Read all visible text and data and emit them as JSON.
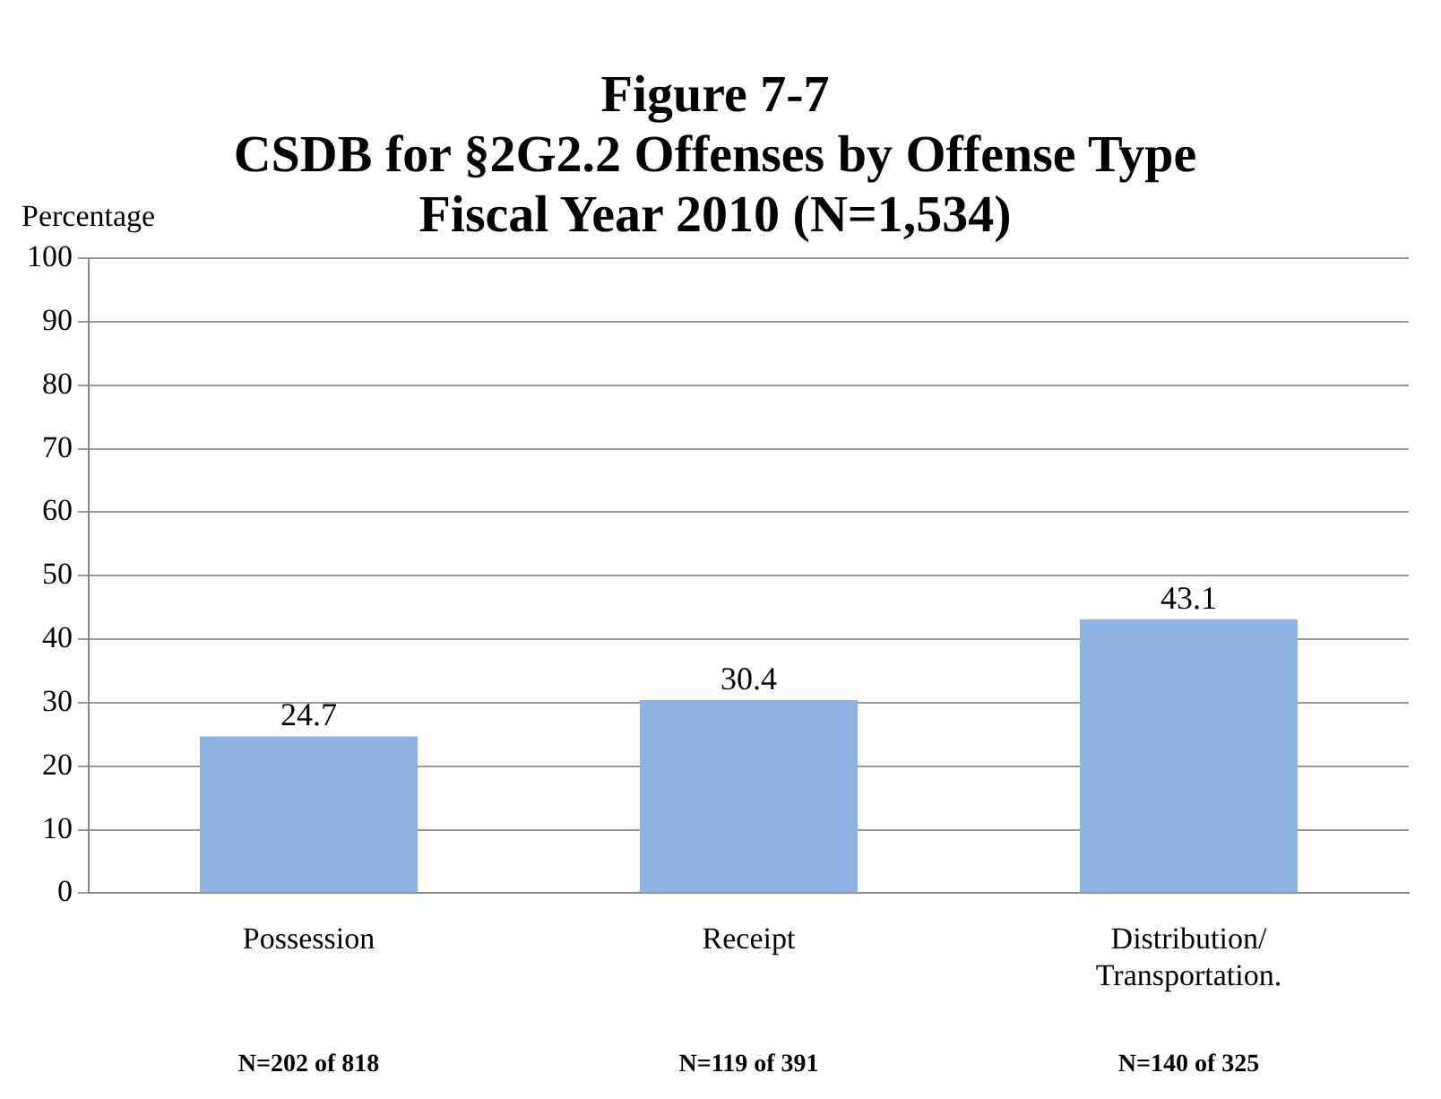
{
  "chart_data": {
    "type": "bar",
    "title": "Figure 7-7\nCSDB for §2G2.2 Offenses by Offense Type\nFiscal Year 2010 (N=1,534)",
    "ylabel": "Percentage",
    "categories": [
      "Possession",
      "Receipt",
      "Distribution/\nTransportation."
    ],
    "values": [
      24.7,
      30.4,
      43.1
    ],
    "color": "#8db3e2",
    "ylim": [
      0,
      100
    ],
    "yticks": [
      0,
      10,
      20,
      30,
      40,
      50,
      60,
      70,
      80,
      90,
      100
    ],
    "grid": "y",
    "legend": false,
    "data_labels": true,
    "annotations": [
      "N=202 of 818",
      "N=119 of 391",
      "N=140 of 325"
    ]
  }
}
